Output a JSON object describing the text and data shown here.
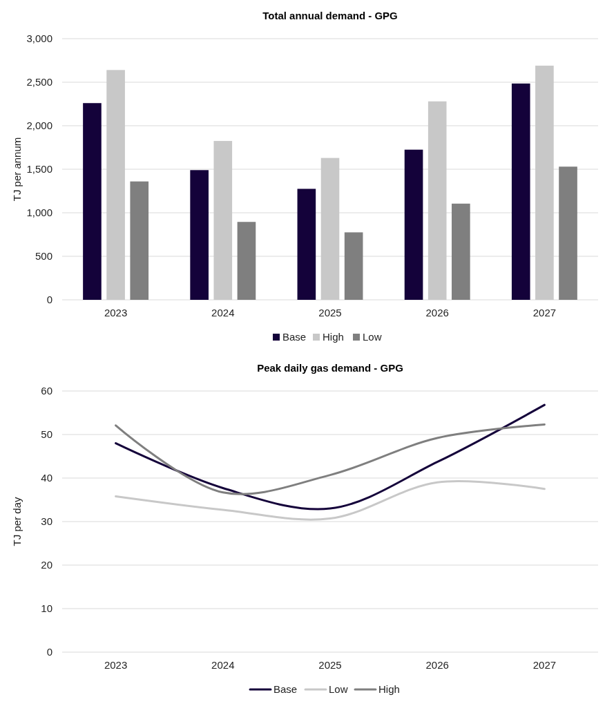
{
  "chart_data": [
    {
      "type": "bar",
      "title": "Total annual demand - GPG",
      "ylabel": "TJ per annum",
      "categories": [
        "2023",
        "2024",
        "2025",
        "2026",
        "2027"
      ],
      "series": [
        {
          "name": "Base",
          "color": "#14023a",
          "values": [
            2260,
            1490,
            1275,
            1725,
            2485
          ]
        },
        {
          "name": "High",
          "color": "#c8c8c8",
          "values": [
            2640,
            1825,
            1630,
            2280,
            2690
          ]
        },
        {
          "name": "Low",
          "color": "#7f7f7f",
          "values": [
            1360,
            895,
            775,
            1105,
            1530
          ]
        }
      ],
      "ylim": [
        0,
        3000
      ],
      "yticks": [
        {
          "value": 0,
          "label": "0"
        },
        {
          "value": 500,
          "label": "500"
        },
        {
          "value": 1000,
          "label": "1,000"
        },
        {
          "value": 1500,
          "label": "1,500"
        },
        {
          "value": 2000,
          "label": "2,000"
        },
        {
          "value": 2500,
          "label": "2,500"
        },
        {
          "value": 3000,
          "label": "3,000"
        }
      ],
      "grid": "y",
      "legend": "bottom"
    },
    {
      "type": "line",
      "title": "Peak daily gas demand - GPG",
      "ylabel": "TJ per day",
      "categories": [
        "2023",
        "2024",
        "2025",
        "2026",
        "2027"
      ],
      "series": [
        {
          "name": "Base",
          "color": "#14023a",
          "values": [
            48,
            37.7,
            33,
            43.7,
            56.8
          ]
        },
        {
          "name": "Low",
          "color": "#c8c8c8",
          "values": [
            35.8,
            32.7,
            30.7,
            39,
            37.5
          ]
        },
        {
          "name": "High",
          "color": "#7f7f7f",
          "values": [
            52.1,
            36.7,
            40.7,
            49.2,
            52.3
          ]
        }
      ],
      "ylim": [
        0,
        60
      ],
      "yticks": [
        0,
        10,
        20,
        30,
        40,
        50,
        60
      ],
      "grid": "y",
      "legend": "bottom",
      "marker": "none",
      "line_style": "solid"
    }
  ]
}
